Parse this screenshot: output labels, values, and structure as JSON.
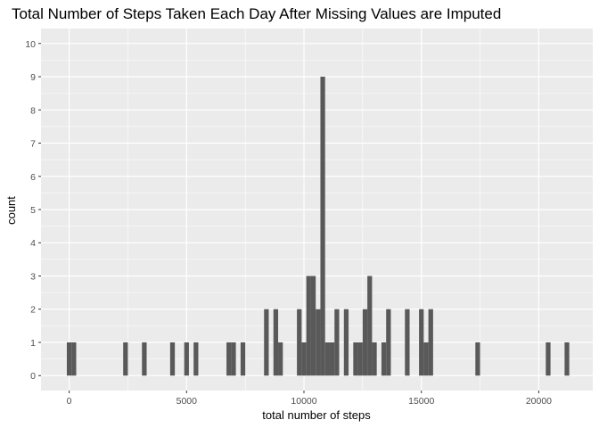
{
  "chart_data": {
    "type": "bar",
    "title": "Total Number of Steps Taken Each Day After Missing Values are Imputed",
    "xlabel": "total number of steps",
    "ylabel": "count",
    "xlim": [
      -1200,
      22300
    ],
    "ylim": [
      -0.45,
      10.45
    ],
    "x_ticks": [
      0,
      5000,
      10000,
      15000,
      20000
    ],
    "y_ticks": [
      0,
      1,
      2,
      3,
      4,
      5,
      6,
      7,
      8,
      9,
      10
    ],
    "bin_width": 200,
    "grid": true,
    "colors": {
      "panel": "#ebebeb",
      "grid_major": "#ffffff",
      "bar": "#595959"
    },
    "bins": [
      {
        "x": 0,
        "count": 1
      },
      {
        "x": 200,
        "count": 1
      },
      {
        "x": 2400,
        "count": 1
      },
      {
        "x": 3200,
        "count": 1
      },
      {
        "x": 4400,
        "count": 1
      },
      {
        "x": 5000,
        "count": 1
      },
      {
        "x": 5400,
        "count": 1
      },
      {
        "x": 6800,
        "count": 1
      },
      {
        "x": 7000,
        "count": 1
      },
      {
        "x": 7400,
        "count": 1
      },
      {
        "x": 8400,
        "count": 2
      },
      {
        "x": 8800,
        "count": 2
      },
      {
        "x": 9000,
        "count": 1
      },
      {
        "x": 9800,
        "count": 2
      },
      {
        "x": 10000,
        "count": 1
      },
      {
        "x": 10200,
        "count": 3
      },
      {
        "x": 10400,
        "count": 3
      },
      {
        "x": 10600,
        "count": 2
      },
      {
        "x": 10800,
        "count": 9
      },
      {
        "x": 11000,
        "count": 1
      },
      {
        "x": 11200,
        "count": 1
      },
      {
        "x": 11400,
        "count": 2
      },
      {
        "x": 11800,
        "count": 2
      },
      {
        "x": 12200,
        "count": 1
      },
      {
        "x": 12400,
        "count": 1
      },
      {
        "x": 12600,
        "count": 2
      },
      {
        "x": 12800,
        "count": 3
      },
      {
        "x": 13000,
        "count": 1
      },
      {
        "x": 13400,
        "count": 1
      },
      {
        "x": 13600,
        "count": 2
      },
      {
        "x": 14400,
        "count": 2
      },
      {
        "x": 15000,
        "count": 2
      },
      {
        "x": 15200,
        "count": 1
      },
      {
        "x": 15400,
        "count": 2
      },
      {
        "x": 17400,
        "count": 1
      },
      {
        "x": 20400,
        "count": 1
      },
      {
        "x": 21200,
        "count": 1
      }
    ]
  }
}
